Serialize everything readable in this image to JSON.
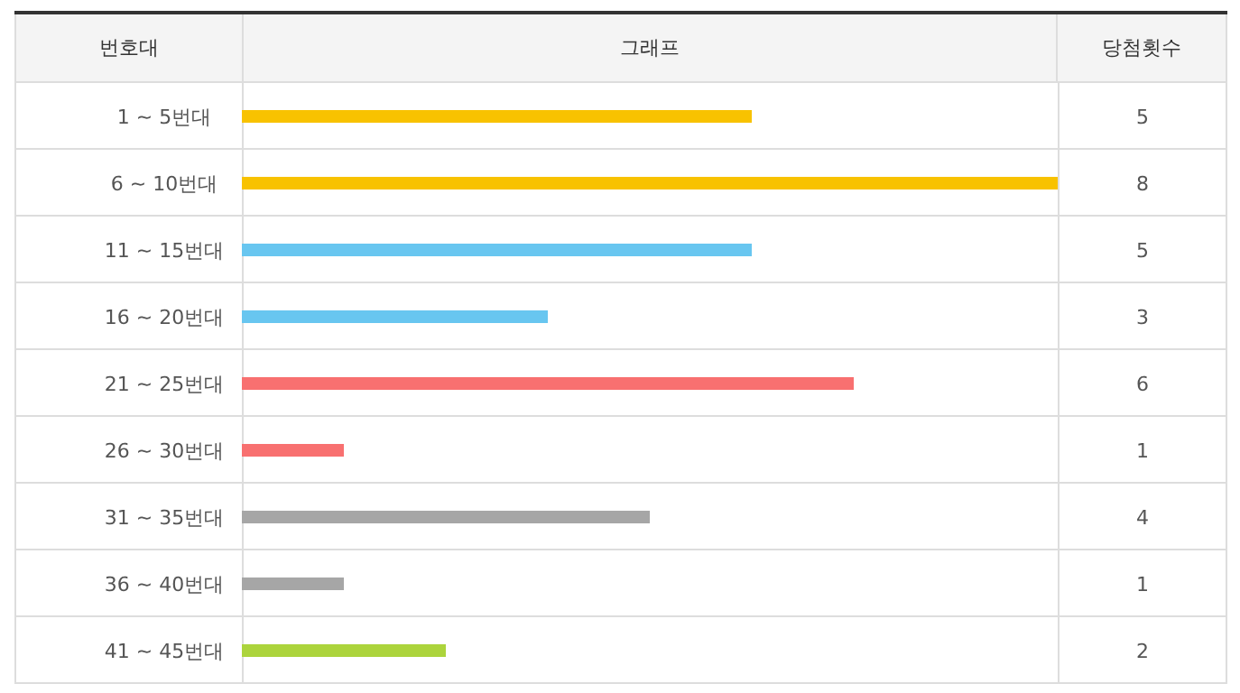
{
  "chart_data": {
    "type": "bar",
    "orientation": "horizontal",
    "title": "그래프",
    "ylabel": "번호대",
    "annotations": [
      "당첨횟수"
    ],
    "categories": [
      "1 ~ 5번대",
      "6 ~ 10번대",
      "11 ~ 15번대",
      "16 ~ 20번대",
      "21 ~ 25번대",
      "26 ~ 30번대",
      "31 ~ 35번대",
      "36 ~ 40번대",
      "41 ~ 45번대"
    ],
    "values": [
      5,
      8,
      5,
      3,
      6,
      1,
      4,
      1,
      2
    ],
    "colors": [
      "#f8c200",
      "#f8c200",
      "#68c6f0",
      "#68c6f0",
      "#f87070",
      "#f87070",
      "#a6a6a6",
      "#a6a6a6",
      "#acd43c"
    ],
    "data_labels": true
  }
}
